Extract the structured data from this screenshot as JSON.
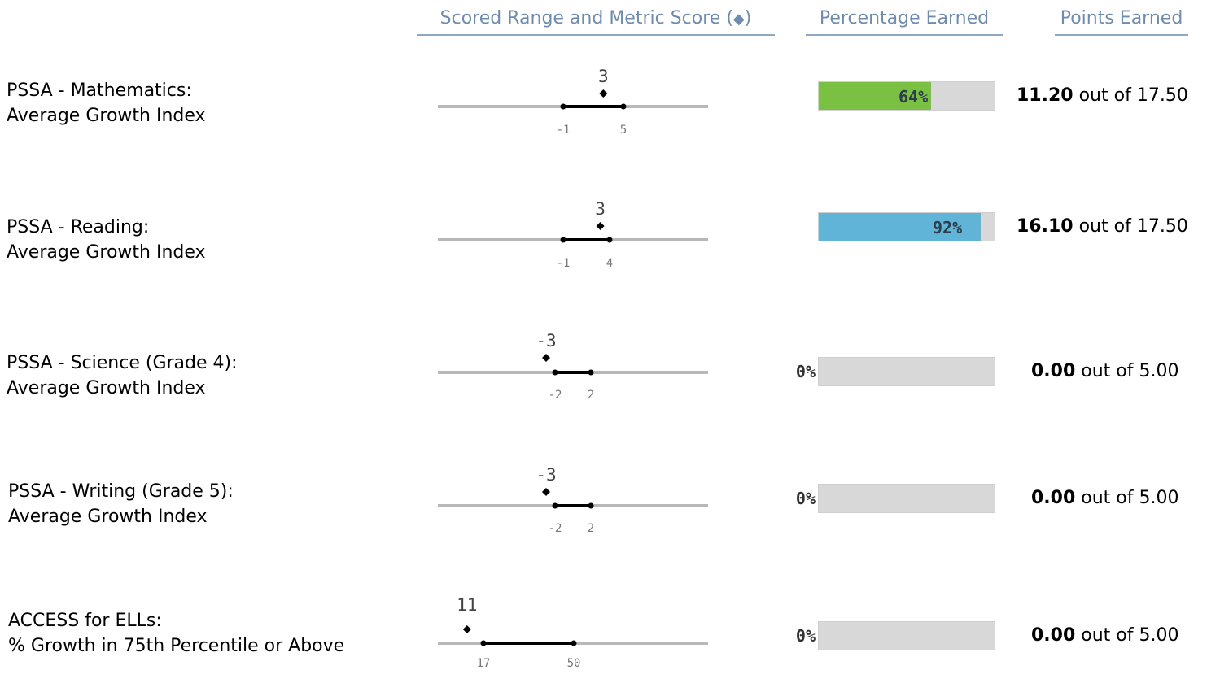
{
  "headers": {
    "range": "Scored Range and Metric Score",
    "range_open": "(",
    "range_icon": "diamond-icon",
    "range_close": ")",
    "percentage": "Percentage Earned",
    "points": "Points Earned"
  },
  "colors": {
    "header": "#6f8cae",
    "math_fill": "#7ac143",
    "reading_fill": "#5fb4d8",
    "track": "#d8d8d8"
  },
  "rows": [
    {
      "label_line1": "PSSA - Mathematics:",
      "label_line2": "Average Growth Index",
      "score": "3",
      "range_low": "-1",
      "range_high": "5",
      "score_value": 3,
      "low_value": -1,
      "high_value": 5,
      "percent": 64,
      "percent_label": "64%",
      "points": "11.20",
      "out_of_text": "out of",
      "max_points": "17.50"
    },
    {
      "label_line1": "PSSA - Reading:",
      "label_line2": "Average Growth Index",
      "score": "3",
      "range_low": "-1",
      "range_high": "4",
      "score_value": 3,
      "low_value": -1,
      "high_value": 4,
      "percent": 92,
      "percent_label": "92%",
      "points": "16.10",
      "out_of_text": "out of",
      "max_points": "17.50"
    },
    {
      "label_line1": "PSSA - Science (Grade 4):",
      "label_line2": "Average Growth Index",
      "score": "-3",
      "range_low": "-2",
      "range_high": "2",
      "score_value": -3,
      "low_value": -2,
      "high_value": 2,
      "percent": 0,
      "percent_label": "0%",
      "points": "0.00",
      "out_of_text": "out of",
      "max_points": "5.00"
    },
    {
      "label_line1": "PSSA - Writing (Grade 5):",
      "label_line2": "Average Growth Index",
      "score": "-3",
      "range_low": "-2",
      "range_high": "2",
      "score_value": -3,
      "low_value": -2,
      "high_value": 2,
      "percent": 0,
      "percent_label": "0%",
      "points": "0.00",
      "out_of_text": "out of",
      "max_points": "5.00"
    },
    {
      "label_line1": "ACCESS for ELLs:",
      "label_line2": "% Growth in 75th Percentile or Above",
      "score": "11",
      "range_low": "17",
      "range_high": "50",
      "score_value": 11,
      "low_value": 17,
      "high_value": 50,
      "percent": 0,
      "percent_label": "0%",
      "points": "0.00",
      "out_of_text": "out of",
      "max_points": "5.00"
    }
  ]
}
